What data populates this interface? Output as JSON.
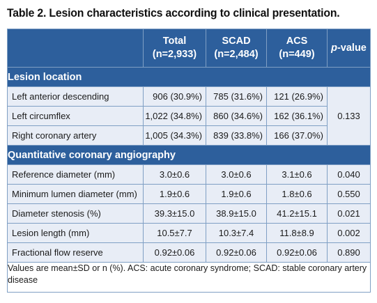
{
  "caption": "Table 2. Lesion characteristics according to clinical presentation.",
  "columns": {
    "total_name": "Total",
    "total_n": "(n=2,933)",
    "scad_name": "SCAD",
    "scad_n": "(n=2,484)",
    "acs_name": "ACS",
    "acs_n": "(n=449)",
    "p_italic": "p",
    "p_rest": "-value"
  },
  "sections": {
    "location": "Lesion location",
    "qca": "Quantitative coronary angiography"
  },
  "location_rows": [
    {
      "label": "Left anterior descending",
      "total": "906 (30.9%)",
      "scad": "785 (31.6%)",
      "acs": "121 (26.9%)"
    },
    {
      "label": "Left circumflex",
      "total": "1,022 (34.8%)",
      "scad": "860 (34.6%)",
      "acs": "162 (36.1%)"
    },
    {
      "label": "Right coronary artery",
      "total": "1,005 (34.3%)",
      "scad": "839 (33.8%)",
      "acs": "166 (37.0%)"
    }
  ],
  "location_p": "0.133",
  "qca_rows": [
    {
      "label": "Reference diameter (mm)",
      "total": "3.0±0.6",
      "scad": "3.0±0.6",
      "acs": "3.1±0.6",
      "p": "0.040"
    },
    {
      "label": "Minimum lumen diameter (mm)",
      "total": "1.9±0.6",
      "scad": "1.9±0.6",
      "acs": "1.8±0.6",
      "p": "0.550"
    },
    {
      "label": "Diameter stenosis (%)",
      "total": "39.3±15.0",
      "scad": "38.9±15.0",
      "acs": "41.2±15.1",
      "p": "0.021"
    },
    {
      "label": "Lesion length (mm)",
      "total": "10.5±7.7",
      "scad": "10.3±7.4",
      "acs": "11.8±8.9",
      "p": "0.002"
    },
    {
      "label": "Fractional flow reserve",
      "total": "0.92±0.06",
      "scad": "0.92±0.06",
      "acs": "0.92±0.06",
      "p": "0.890"
    }
  ],
  "footnote": "Values are mean±SD or n (%). ACS: acute coronary syndrome; SCAD: stable coronary artery disease"
}
